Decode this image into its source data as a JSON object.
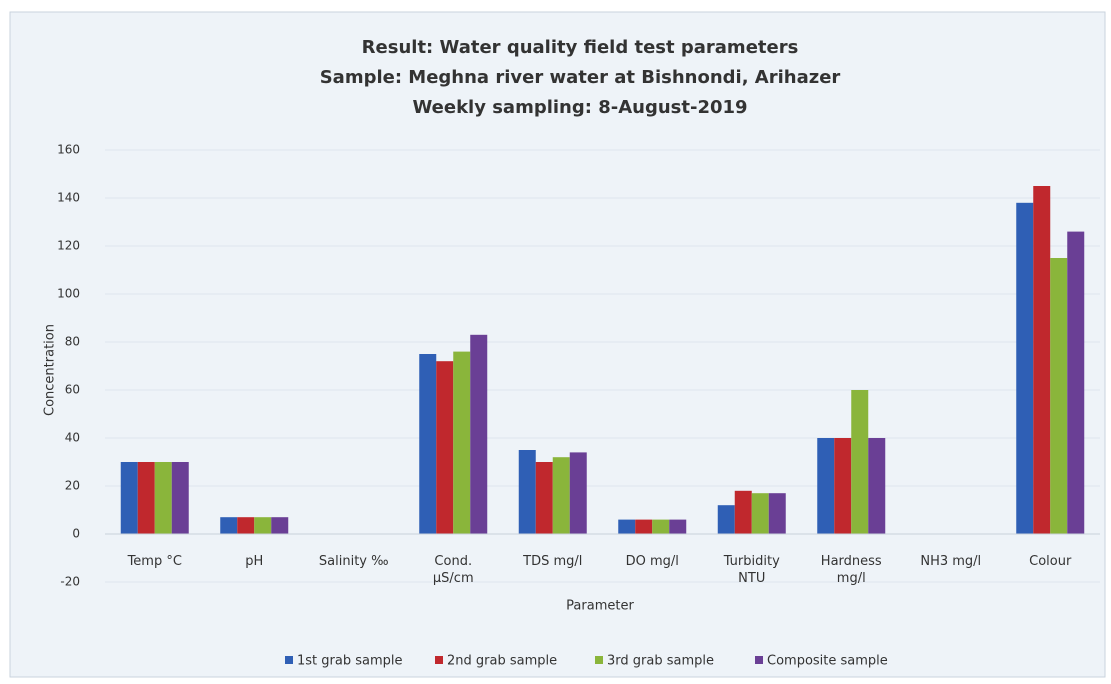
{
  "chart_data": {
    "type": "bar",
    "title": [
      "Result:  Water quality field test parameters",
      "Sample: Meghna river water at Bishnondi, Arihazer",
      "Weekly sampling: 8-August-2019"
    ],
    "x_label": "Parameter",
    "y_label": "Concentration",
    "categories": [
      "Temp °C",
      "pH",
      "Salinity ‰",
      "Cond. µS/cm",
      "TDS mg/l",
      "DO mg/l",
      "Turbidity NTU",
      "Hardness mg/l",
      "NH3 mg/l",
      "Colour"
    ],
    "series": [
      {
        "name": "1st grab sample",
        "color": "#2f5fb5",
        "values": [
          30,
          7,
          0,
          75,
          35,
          6,
          12,
          40,
          0,
          138
        ]
      },
      {
        "name": "2nd grab sample",
        "color": "#c0282d",
        "values": [
          30,
          7,
          0,
          72,
          30,
          6,
          18,
          40,
          0,
          145
        ]
      },
      {
        "name": "3rd grab sample",
        "color": "#8ab53b",
        "values": [
          30,
          7,
          0,
          76,
          32,
          6,
          17,
          60,
          0,
          115
        ]
      },
      {
        "name": "Composite sample",
        "color": "#6a3f95",
        "values": [
          30,
          7,
          0,
          83,
          34,
          6,
          17,
          40,
          0,
          126
        ]
      }
    ],
    "ylim": [
      -20,
      160
    ],
    "yticks": [
      -20,
      0,
      20,
      40,
      60,
      80,
      100,
      120,
      140,
      160
    ],
    "grid": true,
    "legend": "bottom"
  }
}
